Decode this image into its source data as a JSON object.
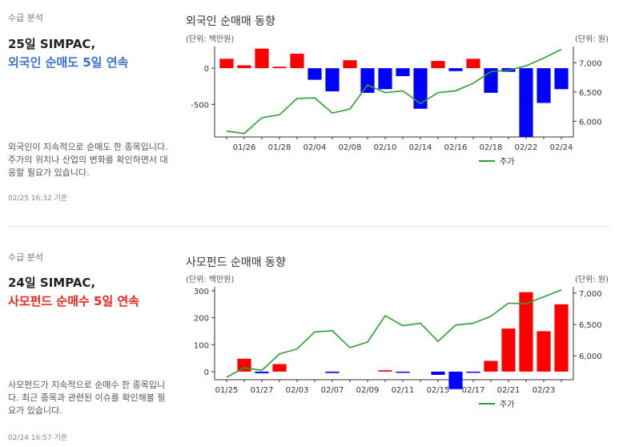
{
  "cards": [
    {
      "section_label": "수급 분석",
      "headline_line1": "25일 SIMPAC,",
      "headline_line2": "외국인 순매도 5일 연속",
      "headline_color": "#3a6fd8",
      "description": "외국인이 지속적으로 순매도 한 종목입니다. 주가의 위치나 산업의 변화를 확인하면서 대응할 필요가 있습니다.",
      "timestamp": "02/25 16:32 기준"
    },
    {
      "section_label": "수급 분석",
      "headline_line1": "24일 SIMPAC,",
      "headline_line2": "사모펀드 순매수 5일 연속",
      "headline_color": "#e8281e",
      "description": "사모펀드가 지속적으로 순매수 한 종목입니다. 최근 종목과 관련된 이슈를 확인해볼 필요가 있습니다.",
      "timestamp": "02/24 16:57 기준"
    }
  ],
  "chart_data": [
    {
      "type": "bar",
      "title": "외국인 순매매 동향",
      "ylabel": "(단위: 백만원)",
      "y2label": "(단위: 원)",
      "legend": "주가",
      "legend_position": "bottom-right",
      "ylim": [
        -950,
        300
      ],
      "yticks": [
        0,
        -500
      ],
      "y2lim": [
        5730,
        7280
      ],
      "y2ticks": [
        6000,
        6500,
        7000
      ],
      "y2tick_labels": [
        "6,000",
        "6,500",
        "7,000"
      ],
      "xtick_labels": [
        "01/26",
        "01/28",
        "02/04",
        "02/08",
        "02/10",
        "02/14",
        "02/16",
        "02/18",
        "02/22",
        "02/24"
      ],
      "xtick_index": [
        1,
        3,
        5,
        7,
        9,
        11,
        13,
        15,
        17,
        19
      ],
      "series": [
        {
          "name": "순매매",
          "values": [
            130,
            40,
            270,
            20,
            200,
            -160,
            -320,
            110,
            -340,
            -290,
            -110,
            -560,
            100,
            -40,
            130,
            -340,
            -50,
            -950,
            -480,
            -290
          ]
        },
        {
          "name": "주가",
          "values": [
            5830,
            5790,
            6060,
            6110,
            6390,
            6400,
            6140,
            6210,
            6620,
            6490,
            6520,
            6300,
            6490,
            6520,
            6650,
            6850,
            6870,
            6950,
            7080,
            7230
          ]
        }
      ]
    },
    {
      "type": "bar",
      "title": "사모펀드 순매매 동향",
      "ylabel": "(단위: 백만원)",
      "y2label": "(단위: 원)",
      "legend": "주가",
      "legend_position": "bottom-right",
      "ylim": [
        -30,
        315
      ],
      "yticks": [
        0,
        100,
        200,
        300
      ],
      "y2lim": [
        5620,
        7100
      ],
      "y2ticks": [
        6000,
        6500,
        7000
      ],
      "y2tick_labels": [
        "6,000",
        "6,500",
        "7,000"
      ],
      "xtick_labels": [
        "01/25",
        "01/27",
        "02/03",
        "02/07",
        "02/09",
        "02/11",
        "02/15",
        "02/17",
        "02/21",
        "02/23"
      ],
      "xtick_index": [
        0,
        2,
        4,
        6,
        8,
        10,
        12,
        14,
        16,
        18
      ],
      "series": [
        {
          "name": "순매매",
          "values": [
            0,
            48,
            -6,
            28,
            0,
            0,
            -5,
            0,
            0,
            5,
            -4,
            0,
            -12,
            -65,
            -4,
            40,
            160,
            295,
            150,
            250
          ]
        },
        {
          "name": "주가",
          "values": [
            5660,
            5810,
            5770,
            6030,
            6110,
            6380,
            6400,
            6130,
            6220,
            6640,
            6480,
            6520,
            6230,
            6490,
            6520,
            6630,
            6840,
            6830,
            6940,
            7050
          ]
        }
      ]
    }
  ],
  "colors": {
    "positive": "#ff0000",
    "negative": "#0000ff",
    "price_line": "#2ca02c",
    "axis": "#333333"
  }
}
